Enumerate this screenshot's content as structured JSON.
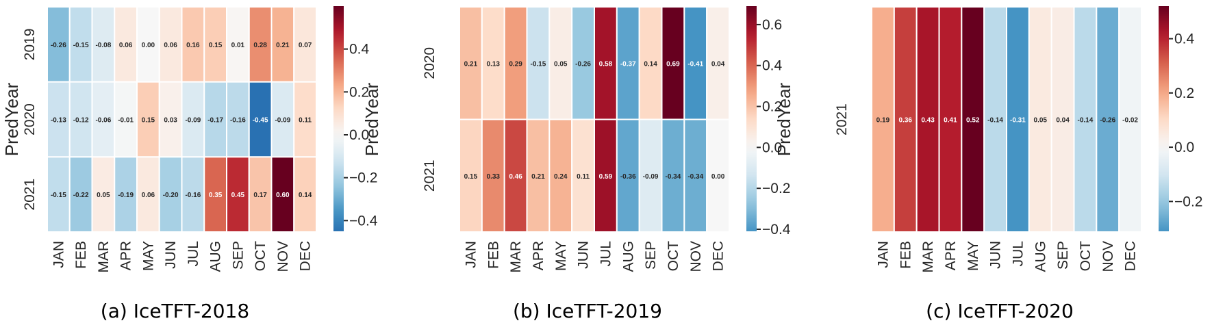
{
  "chart_data": [
    {
      "type": "heatmap",
      "caption": "(a)  IceTFT-2018",
      "ylabel": "PredYear",
      "xlabel": "",
      "x": [
        "JAN",
        "FEB",
        "MAR",
        "APR",
        "MAY",
        "JUN",
        "JUL",
        "AUG",
        "SEP",
        "OCT",
        "NOV",
        "DEC"
      ],
      "y": [
        "2019",
        "2020",
        "2021"
      ],
      "values": [
        [
          -0.26,
          -0.15,
          -0.08,
          0.06,
          0.0,
          0.06,
          0.16,
          0.15,
          0.01,
          0.28,
          0.21,
          0.07
        ],
        [
          -0.13,
          -0.12,
          -0.06,
          -0.01,
          0.15,
          0.03,
          -0.09,
          -0.17,
          -0.16,
          -0.45,
          -0.09,
          0.11
        ],
        [
          -0.15,
          -0.22,
          0.05,
          -0.19,
          0.06,
          -0.2,
          -0.16,
          0.35,
          0.45,
          0.17,
          0.6,
          0.14
        ]
      ],
      "colorbar": {
        "colormap": "RdBu_r",
        "range": [
          -0.45,
          0.6
        ],
        "center": 0,
        "ticks": [
          0.4,
          0.2,
          0.0,
          -0.2,
          -0.4
        ],
        "tick_labels": [
          "0.4",
          "0.2",
          "0.0",
          "−0.2",
          "−0.4"
        ]
      }
    },
    {
      "type": "heatmap",
      "caption": "(b)  IceTFT-2019",
      "ylabel": "PredYear",
      "xlabel": "",
      "x": [
        "JAN",
        "FEB",
        "MAR",
        "APR",
        "MAY",
        "JUN",
        "JUL",
        "AUG",
        "SEP",
        "OCT",
        "NOV",
        "DEC"
      ],
      "y": [
        "2020",
        "2021"
      ],
      "values": [
        [
          0.21,
          0.13,
          0.29,
          -0.15,
          0.05,
          -0.26,
          0.58,
          -0.37,
          0.14,
          0.69,
          -0.41,
          0.04
        ],
        [
          0.15,
          0.33,
          0.46,
          0.21,
          0.24,
          0.11,
          0.59,
          -0.36,
          -0.09,
          -0.34,
          -0.34,
          -0.0
        ]
      ],
      "colorbar": {
        "colormap": "RdBu_r",
        "range": [
          -0.41,
          0.69
        ],
        "center": 0,
        "ticks": [
          0.6,
          0.4,
          0.2,
          0.0,
          -0.2,
          -0.4
        ],
        "tick_labels": [
          "0.6",
          "0.4",
          "0.2",
          "0.0",
          "−0.2",
          "−0.4"
        ]
      }
    },
    {
      "type": "heatmap",
      "caption": "(c)  IceTFT-2020",
      "ylabel": "PredYear",
      "xlabel": "",
      "x": [
        "JAN",
        "FEB",
        "MAR",
        "APR",
        "MAY",
        "JUN",
        "JUL",
        "AUG",
        "SEP",
        "OCT",
        "NOV",
        "DEC"
      ],
      "y": [
        "2021"
      ],
      "values": [
        [
          0.19,
          0.36,
          0.43,
          0.41,
          0.52,
          -0.14,
          -0.31,
          0.05,
          0.04,
          -0.14,
          -0.26,
          -0.02
        ]
      ],
      "colorbar": {
        "colormap": "RdBu_r",
        "range": [
          -0.31,
          0.52
        ],
        "center": 0,
        "ticks": [
          0.4,
          0.2,
          0.0,
          -0.2
        ],
        "tick_labels": [
          "0.4",
          "0.2",
          "0.0",
          "−0.2"
        ]
      }
    }
  ]
}
